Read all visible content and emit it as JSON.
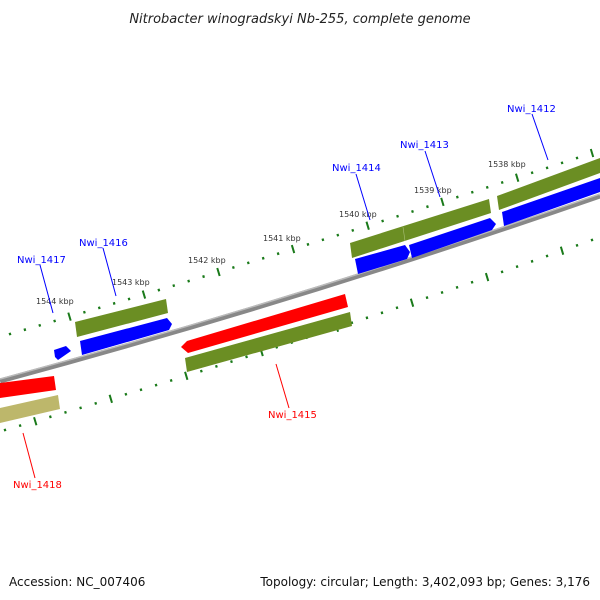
{
  "title": "Nitrobacter winogradskyi Nb-255, complete genome",
  "footer": {
    "accession": "Accession: NC_007406",
    "summary": "Topology: circular; Length: 3,402,093 bp; Genes: 3,176"
  },
  "scale_labels": [
    "1544 kbp",
    "1543 kbp",
    "1542 kbp",
    "1541 kbp",
    "1540 kbp",
    "1539 kbp",
    "1538 kbp"
  ],
  "genes": [
    {
      "name": "Nwi_1412",
      "strand": "forward"
    },
    {
      "name": "Nwi_1413",
      "strand": "forward"
    },
    {
      "name": "Nwi_1414",
      "strand": "forward"
    },
    {
      "name": "Nwi_1415",
      "strand": "reverse"
    },
    {
      "name": "Nwi_1416",
      "strand": "forward"
    },
    {
      "name": "Nwi_1417",
      "strand": "forward"
    },
    {
      "name": "Nwi_1418",
      "strand": "reverse"
    }
  ],
  "colors": {
    "forward": "#0000ff",
    "reverse": "#ff0000",
    "cog": "#6b8e23",
    "cog_alt": "#bdb76b",
    "backbone": "#808080",
    "ticks": "#1a7a1a"
  }
}
